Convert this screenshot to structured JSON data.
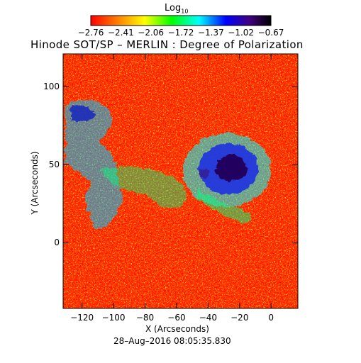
{
  "colorbar": {
    "label_main": "Log",
    "label_sub": "10",
    "ticks": [
      "−2.76",
      "−2.41",
      "−2.06",
      "−1.72",
      "−1.37",
      "−1.02",
      "−0.67"
    ],
    "range": [
      -2.76,
      -0.67
    ],
    "colormap": [
      "#ff0000",
      "#ff8000",
      "#ffff00",
      "#00ff00",
      "#00ffff",
      "#0000ff",
      "#400080",
      "#000000"
    ]
  },
  "plot": {
    "title": "Hinode SOT/SP – MERLIN : Degree of Polarization",
    "xlabel": "X (Arcseconds)",
    "ylabel": "Y (Arcseconds)",
    "x_ticks": [
      "−120",
      "−100",
      "−80",
      "−60",
      "−40",
      "−20",
      "0"
    ],
    "x_tick_values": [
      -120,
      -100,
      -80,
      -60,
      -40,
      -20,
      0
    ],
    "y_ticks": [
      "100",
      "50",
      "0"
    ],
    "y_tick_values": [
      100,
      50,
      0
    ],
    "xlim": [
      -132,
      17
    ],
    "ylim": [
      -42,
      121
    ],
    "timestamp": "28–Aug–2016 08:05:35.830"
  }
}
